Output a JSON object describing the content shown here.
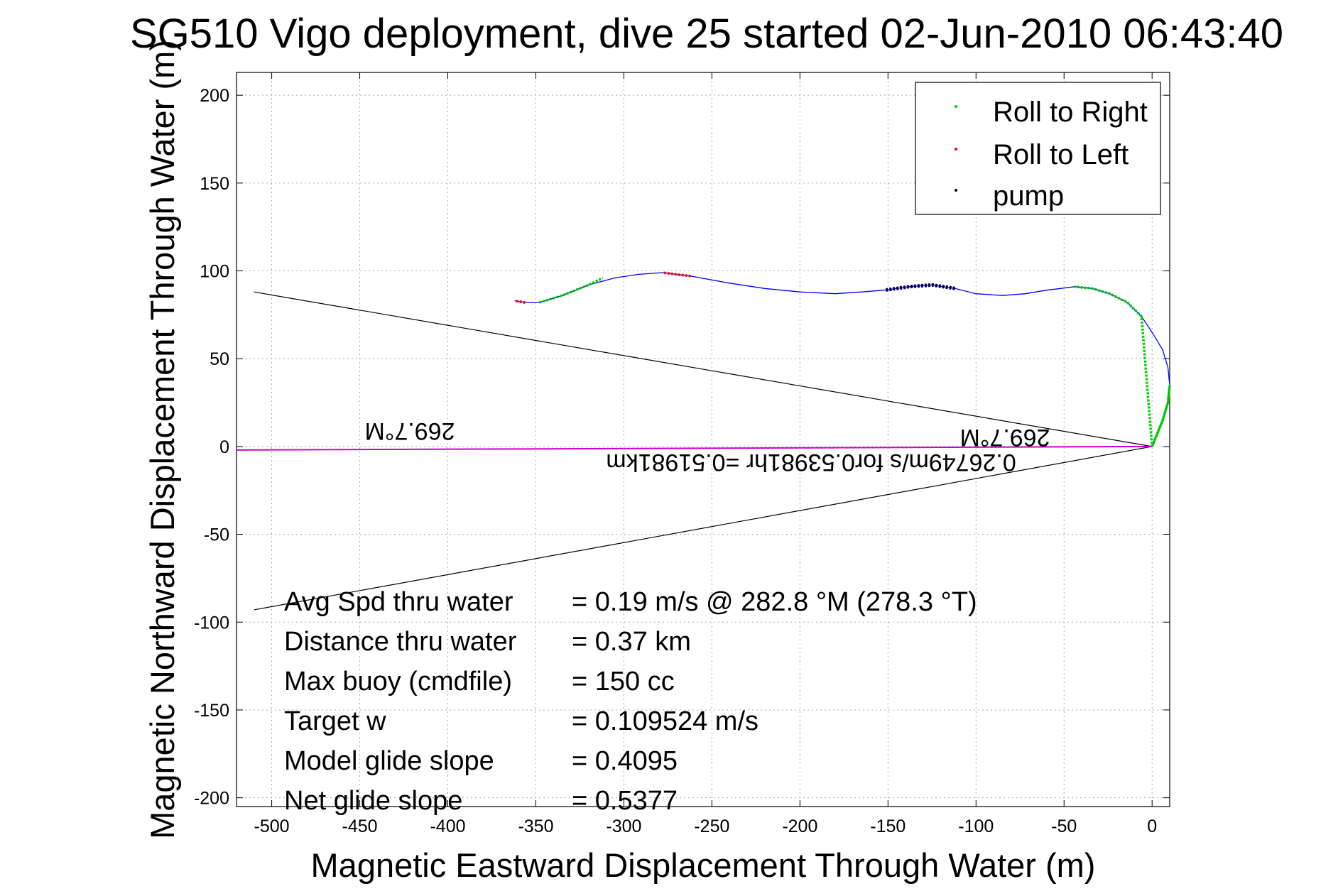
{
  "chart_data": {
    "type": "line",
    "title": "SG510 Vigo deployment, dive 25 started 02-Jun-2010 06:43:40",
    "xlabel": "Magnetic Eastward Displacement Through Water (m)",
    "ylabel": "Magnetic Northward Displacement Through Water (m)",
    "xlim": [
      -520,
      10
    ],
    "ylim": [
      -205,
      213
    ],
    "xticks": [
      -500,
      -450,
      -400,
      -350,
      -300,
      -250,
      -200,
      -150,
      -100,
      -50,
      0
    ],
    "yticks": [
      200,
      150,
      100,
      50,
      0,
      -50,
      -100,
      -150,
      -200
    ],
    "grid": true,
    "legend_position": "top-right",
    "legend": [
      {
        "label": "Roll to Right",
        "color": "#00cc00"
      },
      {
        "label": "Roll to Left",
        "color": "#ff0000"
      },
      {
        "label": "pump",
        "color": "#000044"
      }
    ],
    "track": {
      "color": "#0000ff",
      "x": [
        0,
        2,
        6,
        9,
        10,
        9,
        6,
        0,
        -6,
        -14,
        -24,
        -34,
        -44,
        -52,
        -60,
        -72,
        -85,
        -100,
        -112,
        -125,
        -138,
        -152,
        -165,
        -180,
        -200,
        -220,
        -240,
        -262,
        -278,
        -292,
        -305,
        -320,
        -335,
        -348,
        -356,
        -362
      ],
      "y": [
        0,
        5,
        15,
        25,
        35,
        45,
        55,
        65,
        74,
        82,
        87,
        90,
        91,
        90,
        89,
        87,
        86,
        87,
        90,
        92,
        91,
        89,
        88,
        87,
        88,
        90,
        93,
        97,
        99,
        98,
        96,
        92,
        86,
        82,
        82,
        83
      ]
    },
    "roll_right_segments": [
      {
        "x": [
          0,
          2,
          6,
          9,
          10,
          9,
          6,
          0,
          -6,
          -14,
          -24,
          -34,
          -44
        ]
      },
      {
        "x": [
          -348,
          -335,
          -320,
          -312
        ]
      }
    ],
    "roll_left_segments": [
      {
        "x": [
          -262,
          -278
        ]
      },
      {
        "x": [
          -356,
          -362
        ]
      }
    ],
    "pump_segments": [
      {
        "x": [
          -112,
          -125,
          -138,
          -152
        ]
      }
    ],
    "current_line": {
      "color": "#cc00cc",
      "x": [
        0,
        -520
      ],
      "y": [
        0,
        -2
      ]
    },
    "cone_lines": {
      "color": "#000000",
      "lines": [
        {
          "x": [
            0,
            -510
          ],
          "y": [
            0,
            88
          ]
        },
        {
          "x": [
            0,
            -510
          ],
          "y": [
            0,
            -93
          ]
        }
      ]
    },
    "annotations": {
      "heading_left": "269.7°M",
      "heading_right": "269.7°M",
      "current_text": "0.26749m/s for0.53981hr =0.51981km"
    },
    "stats": [
      {
        "label": "Avg Spd thru water",
        "value": "=  0.19 m/s @ 282.8 °M (278.3 °T)"
      },
      {
        "label": "Distance thru water",
        "value": "=  0.37 km"
      },
      {
        "label": "Max buoy (cmdfile)",
        "value": "= 150 cc"
      },
      {
        "label": "Target w",
        "value": "= 0.109524 m/s"
      },
      {
        "label": "Model glide slope",
        "value": "= 0.4095"
      },
      {
        "label": "Net glide slope",
        "value": "= 0.5377"
      }
    ]
  }
}
